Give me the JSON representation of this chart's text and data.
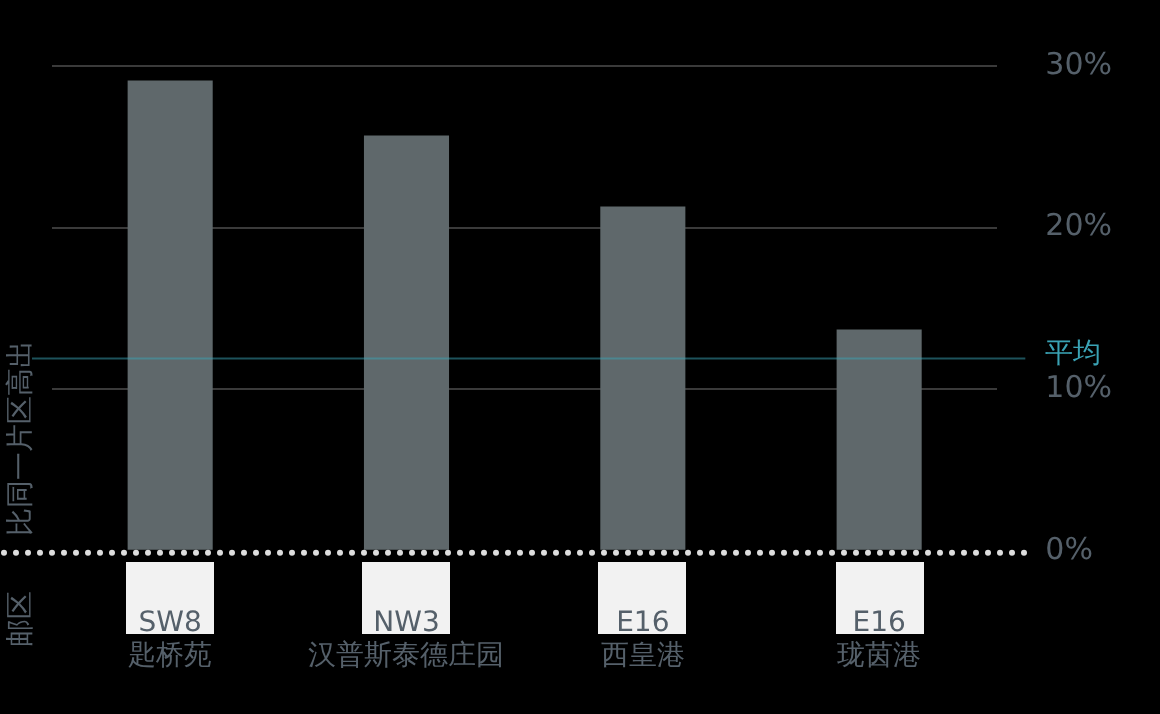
{
  "chart_data": {
    "type": "bar",
    "categories": [
      "SW8\n匙桥苑",
      "NW3\n汉普斯泰德庄园",
      "E16\n西皇港",
      "E16\n珑茵港"
    ],
    "values": [
      29.1,
      25.7,
      21.3,
      13.7
    ],
    "color": "#5f686b",
    "ylabel": "比同一片区高出",
    "annotations": [
      "邮区"
    ],
    "ylim": [
      0,
      30
    ],
    "yticks": [
      {
        "value": 0,
        "label": "0%"
      },
      {
        "value": 10,
        "label": "10%"
      },
      {
        "value": 20,
        "label": "20%"
      },
      {
        "value": 30,
        "label": "30%"
      }
    ],
    "grid": "y",
    "legend": false,
    "ref_lines": [
      {
        "axis": "y",
        "value": 11.9,
        "label": "平均",
        "color": "#3aa3b5"
      }
    ]
  }
}
